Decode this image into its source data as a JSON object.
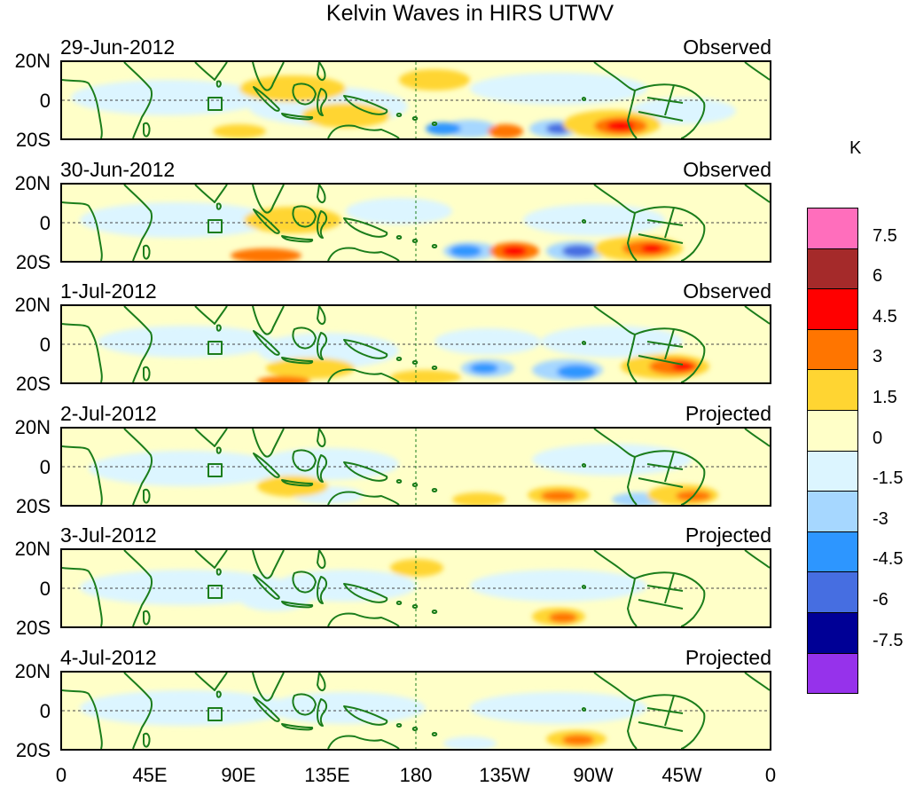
{
  "title": "Kelvin Waves in HIRS UTWV",
  "panels": [
    {
      "date": "29-Jun-2012",
      "status": "Observed"
    },
    {
      "date": "30-Jun-2012",
      "status": "Observed"
    },
    {
      "date": "1-Jul-2012",
      "status": "Observed"
    },
    {
      "date": "2-Jul-2012",
      "status": "Projected"
    },
    {
      "date": "3-Jul-2012",
      "status": "Projected"
    },
    {
      "date": "4-Jul-2012",
      "status": "Projected"
    }
  ],
  "y_labels": [
    "20N",
    "0",
    "20S"
  ],
  "x_labels": [
    "0",
    "45E",
    "90E",
    "135E",
    "180",
    "135W",
    "90W",
    "45W",
    "0"
  ],
  "colorbar": {
    "unit": "K",
    "colors": [
      "#ff6ebc",
      "#a52a2a",
      "#ff0000",
      "#ff7500",
      "#ffd532",
      "#ffffc8",
      "#dcf5ff",
      "#a6d7ff",
      "#2d96ff",
      "#466ee1",
      "#000096",
      "#9632eb"
    ],
    "labels": [
      "7.5",
      "6",
      "4.5",
      "3",
      "1.5",
      "0",
      "-1.5",
      "-3",
      "-4.5",
      "-6",
      "-7.5"
    ]
  },
  "map_style": {
    "ocean_bg": "#ffffc8",
    "coast_color": "#1b7d1b",
    "equator_color": "#444444"
  }
}
